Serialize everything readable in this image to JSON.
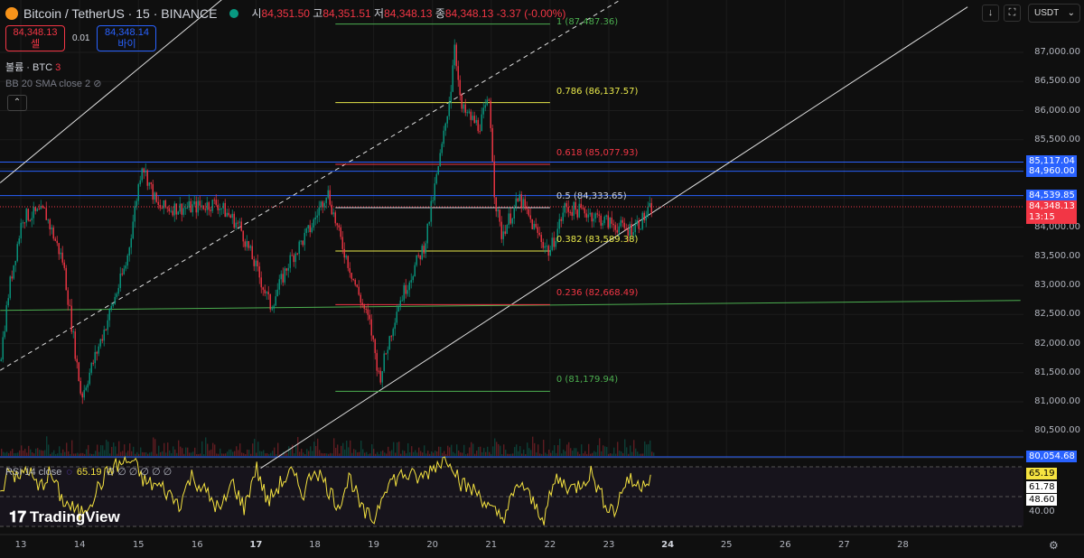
{
  "header": {
    "symbol": "Bitcoin / TetherUS · 15 · BINANCE",
    "open_label": "시",
    "open": "84,351.50",
    "high_label": "고",
    "high": "84,351.51",
    "low_label": "저",
    "low": "84,348.13",
    "close_label": "종",
    "close": "84,348.13",
    "change": "-3.37 (-0.00%)"
  },
  "trade": {
    "sell_price": "84,348.13",
    "sell_label": "셀",
    "spread": "0.01",
    "buy_price": "84,348.14",
    "buy_label": "바이"
  },
  "indicators": {
    "volume": "볼륨 · BTC",
    "volume_value": "3",
    "bb": "BB 20 SMA close 2",
    "rsi": "RSI 14 close",
    "rsi_value": "65.19",
    "rsi_extra": "∅ ∅ ∅ ∅ ∅ ∅"
  },
  "toolbar": {
    "currency": "USDT",
    "down_arrow": "↓",
    "fullscreen": "⛶",
    "collapse": "⌃"
  },
  "brand": "TradingView",
  "colors": {
    "up": "#089981",
    "down": "#f23645",
    "blue": "#2962ff",
    "rsi": "#f5e340",
    "bg": "#0f0f0f"
  },
  "price_axis": {
    "labels": [
      "87,000.00",
      "86,500.00",
      "86,000.00",
      "85,500.00",
      "84,000.00",
      "83,500.00",
      "83,000.00",
      "82,500.00",
      "82,000.00",
      "81,500.00",
      "81,000.00",
      "80,500.00"
    ],
    "tags": [
      {
        "label": "85,117.04",
        "price": 85117.04,
        "color": "#2962ff"
      },
      {
        "label": "84,960.00",
        "price": 84960,
        "color": "#2962ff"
      },
      {
        "label": "84,539.85",
        "price": 84539.85,
        "color": "#2962ff"
      },
      {
        "label": "80,054.68",
        "price": 80054.68,
        "color": "#2962ff"
      }
    ],
    "last_price": "84,348.13",
    "countdown": "13:15"
  },
  "rsi_axis": {
    "labels": [
      "65.19",
      "61.78",
      "48.60",
      "40.00"
    ]
  },
  "time_axis": [
    "13",
    "14",
    "15",
    "16",
    "17",
    "18",
    "19",
    "20",
    "21",
    "22",
    "23",
    "24",
    "25",
    "26",
    "27",
    "28"
  ],
  "chart_data": {
    "type": "candlestick",
    "title": "Bitcoin / TetherUS · 15 · BINANCE",
    "ylim": [
      79700,
      87600
    ],
    "xlim": [
      12.65,
      29.1
    ],
    "x_unit": "day of month",
    "price_path": [
      [
        12.65,
        81700
      ],
      [
        12.8,
        82940
      ],
      [
        13.03,
        84180
      ],
      [
        13.41,
        84256
      ],
      [
        13.72,
        83400
      ],
      [
        14.03,
        81080
      ],
      [
        14.34,
        82000
      ],
      [
        14.8,
        83400
      ],
      [
        15.06,
        85100
      ],
      [
        15.33,
        84330
      ],
      [
        15.87,
        84330
      ],
      [
        16.33,
        84410
      ],
      [
        16.72,
        84020
      ],
      [
        17.02,
        83250
      ],
      [
        17.25,
        82630
      ],
      [
        17.56,
        83400
      ],
      [
        17.95,
        84020
      ],
      [
        18.21,
        84640
      ],
      [
        18.41,
        83870
      ],
      [
        18.71,
        82940
      ],
      [
        18.94,
        82320
      ],
      [
        19.1,
        81390
      ],
      [
        19.4,
        82630
      ],
      [
        19.87,
        83710
      ],
      [
        20.17,
        85420
      ],
      [
        20.33,
        86500
      ],
      [
        20.37,
        87280
      ],
      [
        20.48,
        86040
      ],
      [
        20.79,
        85730
      ],
      [
        20.97,
        86190
      ],
      [
        21.06,
        84490
      ],
      [
        21.17,
        83870
      ],
      [
        21.48,
        84490
      ],
      [
        21.71,
        84020
      ],
      [
        21.99,
        83560
      ],
      [
        22.25,
        84330
      ],
      [
        22.63,
        84256
      ],
      [
        22.94,
        84100
      ],
      [
        23.32,
        83950
      ],
      [
        23.55,
        84100
      ],
      [
        23.74,
        84348.13
      ]
    ],
    "fibonacci": [
      {
        "level": "1",
        "price": 87487.36,
        "label": "1 (87,487.36)",
        "color": "#4caf50"
      },
      {
        "level": "0.786",
        "price": 86137.57,
        "label": "0.786 (86,137.57)",
        "color": "#e8e84a"
      },
      {
        "level": "0.618",
        "price": 85077.93,
        "label": "0.618 (85,077.93)",
        "color": "#f23645"
      },
      {
        "level": "0.5",
        "price": 84333.65,
        "label": "0.5 (84,333.65)",
        "color": "#d1d4dc"
      },
      {
        "level": "0.382",
        "price": 83589.38,
        "label": "0.382 (83,589.38)",
        "color": "#e8e84a"
      },
      {
        "level": "0.236",
        "price": 82668.49,
        "label": "0.236 (82,668.49)",
        "color": "#f23645"
      },
      {
        "level": "0",
        "price": 81179.94,
        "label": "0 (81,179.94)",
        "color": "#4caf50"
      }
    ],
    "fib_range": [
      18.35,
      22.0
    ],
    "horizontal_lines": [
      85117.04,
      84960,
      84539.85,
      80054.68
    ],
    "trend_lines": [
      {
        "style": "solid",
        "color": "#e0e0e0",
        "from": [
          12.65,
          84760
        ],
        "to": [
          17.25,
          88600
        ]
      },
      {
        "style": "dashed",
        "color": "#e0e0e0",
        "from": [
          12.65,
          81540
        ],
        "to": [
          24.62,
          88760
        ]
      },
      {
        "style": "solid",
        "color": "#e0e0e0",
        "from": [
          17.08,
          79860
        ],
        "to": [
          29.1,
          87780
        ]
      },
      {
        "style": "solid",
        "color": "#4caf50",
        "from": [
          12.65,
          82570
        ],
        "to": [
          30.0,
          82740
        ]
      }
    ],
    "rsi": {
      "period": 14,
      "last": 65.19,
      "bands": [
        70,
        50,
        30
      ],
      "levels": [
        61.78,
        48.6
      ],
      "values": [
        [
          12.65,
          50
        ],
        [
          12.8,
          72
        ],
        [
          12.95,
          60
        ],
        [
          13.1,
          70
        ],
        [
          13.3,
          55
        ],
        [
          13.5,
          66
        ],
        [
          13.7,
          48
        ],
        [
          14.0,
          38
        ],
        [
          14.2,
          48
        ],
        [
          14.5,
          68
        ],
        [
          14.7,
          72
        ],
        [
          14.9,
          74
        ],
        [
          15.1,
          60
        ],
        [
          15.4,
          56
        ],
        [
          15.7,
          45
        ],
        [
          15.9,
          64
        ],
        [
          16.1,
          55
        ],
        [
          16.4,
          40
        ],
        [
          16.6,
          60
        ],
        [
          16.8,
          42
        ],
        [
          17.0,
          70
        ],
        [
          17.2,
          46
        ],
        [
          17.4,
          58
        ],
        [
          17.6,
          66
        ],
        [
          17.8,
          52
        ],
        [
          18.0,
          70
        ],
        [
          18.2,
          57
        ],
        [
          18.4,
          44
        ],
        [
          18.6,
          64
        ],
        [
          18.8,
          40
        ],
        [
          19.0,
          34
        ],
        [
          19.2,
          58
        ],
        [
          19.5,
          65
        ],
        [
          19.8,
          62
        ],
        [
          20.1,
          73
        ],
        [
          20.3,
          76
        ],
        [
          20.5,
          58
        ],
        [
          20.8,
          52
        ],
        [
          21.0,
          40
        ],
        [
          21.2,
          36
        ],
        [
          21.5,
          60
        ],
        [
          21.7,
          46
        ],
        [
          21.9,
          36
        ],
        [
          22.1,
          62
        ],
        [
          22.4,
          55
        ],
        [
          22.7,
          66
        ],
        [
          22.9,
          48
        ],
        [
          23.1,
          40
        ],
        [
          23.3,
          62
        ],
        [
          23.5,
          57
        ],
        [
          23.74,
          65.19
        ]
      ]
    }
  }
}
